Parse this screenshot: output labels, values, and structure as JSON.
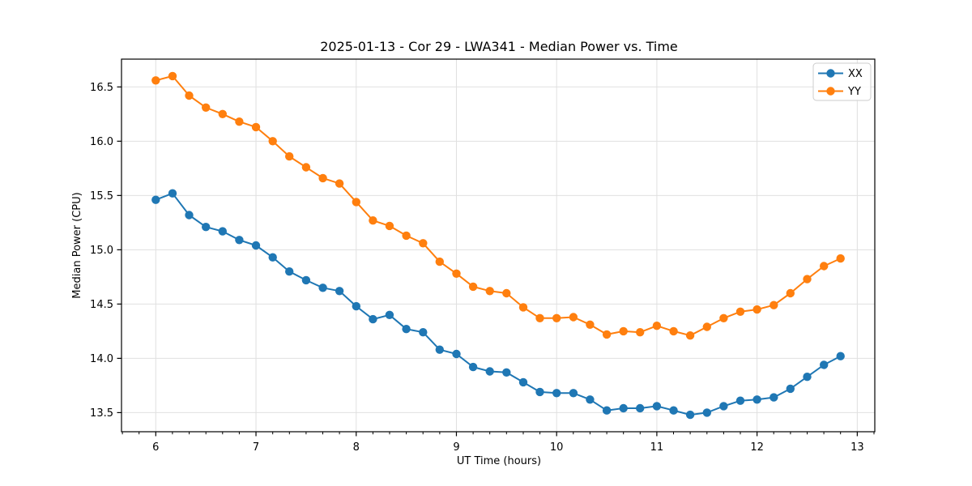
{
  "window": {
    "title": "2025-01-13 - Cor 29 - LWA341 - Median Power vs. Time"
  },
  "chart_data": {
    "type": "line",
    "title": "2025-01-13 - Cor 29 - LWA341 - Median Power vs. Time",
    "xlabel": "UT Time (hours)",
    "ylabel": "Median Power (CPU)",
    "xlim": [
      5.658,
      13.175
    ],
    "ylim": [
      13.324,
      16.756
    ],
    "xticks": [
      6,
      7,
      8,
      9,
      10,
      11,
      12,
      13
    ],
    "yticks": [
      13.5,
      14.0,
      14.5,
      15.0,
      15.5,
      16.0,
      16.5
    ],
    "minor_xtick_step_hours": 0.1667,
    "grid": true,
    "grid_color": "#e0e0e0",
    "background_color": "#ffffff",
    "spine_color": "#000000",
    "legend_position": "upper right",
    "marker": "o",
    "x": [
      6.0,
      6.167,
      6.333,
      6.5,
      6.667,
      6.833,
      7.0,
      7.167,
      7.333,
      7.5,
      7.667,
      7.833,
      8.0,
      8.167,
      8.333,
      8.5,
      8.667,
      8.833,
      9.0,
      9.167,
      9.333,
      9.5,
      9.667,
      9.833,
      10.0,
      10.167,
      10.333,
      10.5,
      10.667,
      10.833,
      11.0,
      11.167,
      11.333,
      11.5,
      11.667,
      11.833,
      12.0,
      12.167,
      12.333,
      12.5,
      12.667,
      12.833
    ],
    "series": [
      {
        "name": "XX",
        "color": "#1f77b4",
        "values": [
          15.46,
          15.52,
          15.32,
          15.21,
          15.17,
          15.09,
          15.04,
          14.93,
          14.8,
          14.72,
          14.65,
          14.62,
          14.48,
          14.36,
          14.4,
          14.27,
          14.24,
          14.08,
          14.04,
          13.92,
          13.88,
          13.87,
          13.78,
          13.69,
          13.68,
          13.68,
          13.62,
          13.52,
          13.54,
          13.54,
          13.56,
          13.52,
          13.48,
          13.5,
          13.56,
          13.61,
          13.62,
          13.64,
          13.72,
          13.83,
          13.94,
          14.02
        ]
      },
      {
        "name": "YY",
        "color": "#ff7f0e",
        "values": [
          16.56,
          16.6,
          16.42,
          16.31,
          16.25,
          16.18,
          16.13,
          16.0,
          15.86,
          15.76,
          15.66,
          15.61,
          15.44,
          15.27,
          15.22,
          15.13,
          15.06,
          14.89,
          14.78,
          14.66,
          14.62,
          14.6,
          14.47,
          14.37,
          14.37,
          14.38,
          14.31,
          14.22,
          14.25,
          14.24,
          14.3,
          14.25,
          14.21,
          14.29,
          14.37,
          14.43,
          14.45,
          14.49,
          14.6,
          14.73,
          14.85,
          14.92
        ]
      }
    ]
  }
}
